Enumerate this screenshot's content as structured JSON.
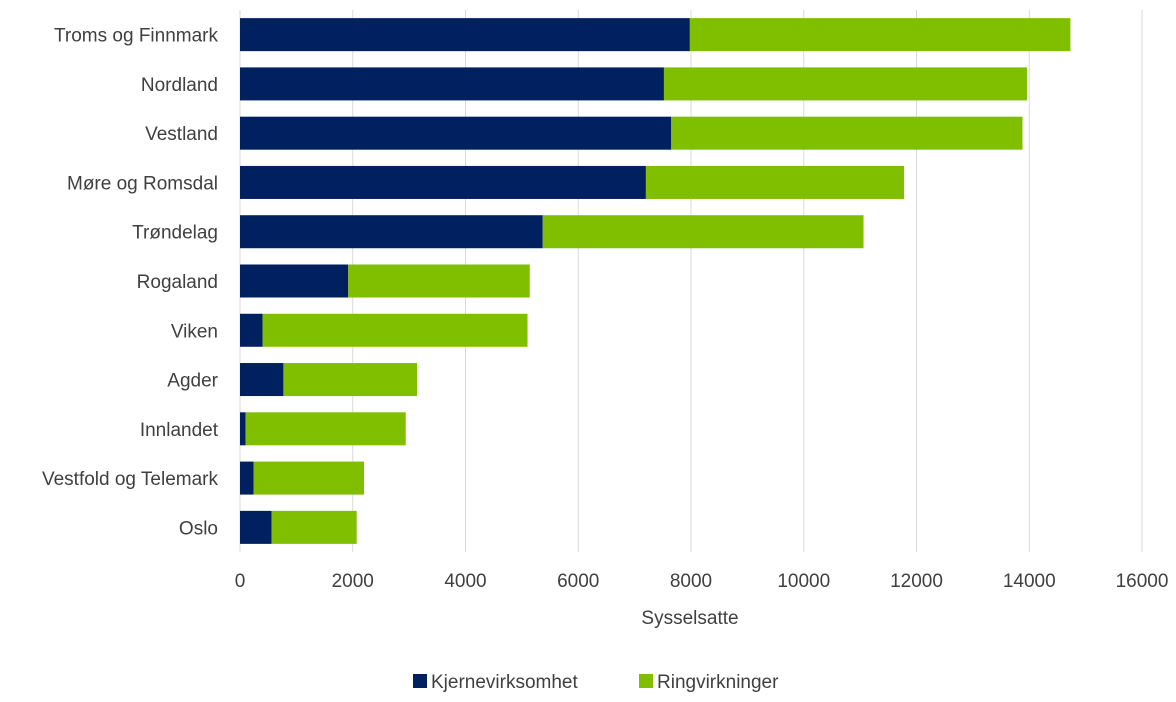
{
  "chart_data": {
    "type": "bar",
    "orientation": "horizontal",
    "stacked": true,
    "categories": [
      "Troms og Finnmark",
      "Nordland",
      "Vestland",
      "Møre og Romsdal",
      "Trøndelag",
      "Rogaland",
      "Viken",
      "Agder",
      "Innlandet",
      "Vestfold og Telemark",
      "Oslo"
    ],
    "series": [
      {
        "name": "Kjernevirksomhet",
        "color": "#002060",
        "values": [
          7980,
          7520,
          7650,
          7200,
          5370,
          1920,
          400,
          770,
          100,
          240,
          560
        ]
      },
      {
        "name": "Ringvirkninger",
        "color": "#7FBF00",
        "values": [
          6750,
          6440,
          6230,
          4580,
          5690,
          3220,
          4700,
          2370,
          2840,
          1960,
          1510
        ]
      }
    ],
    "xlabel": "Sysselsatte",
    "xlim": [
      0,
      16000
    ],
    "xticks": [
      "0",
      "2000",
      "4000",
      "6000",
      "8000",
      "10000",
      "12000",
      "14000",
      "16000"
    ],
    "grid": "vertical",
    "legend_position": "bottom"
  }
}
